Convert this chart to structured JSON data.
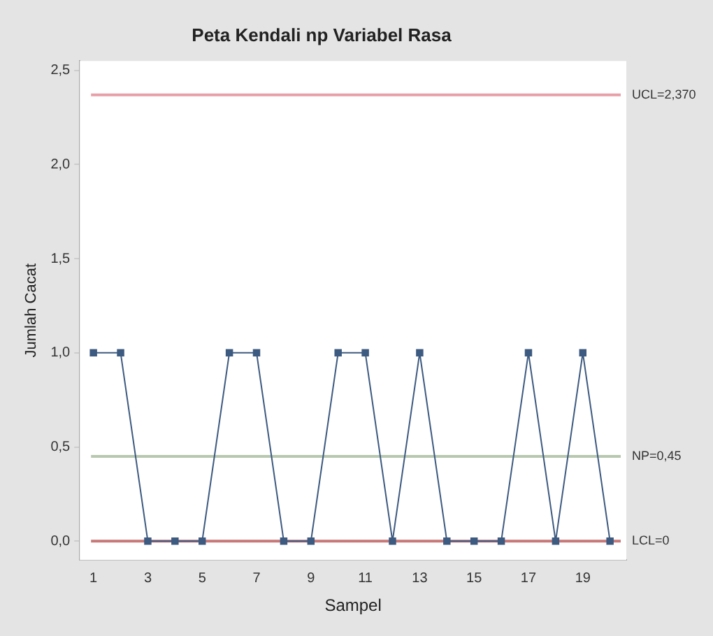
{
  "chart_data": {
    "type": "line",
    "title": "Peta Kendali np Variabel Rasa",
    "xlabel": "Sampel",
    "ylabel": "Jumlah Cacat",
    "x": [
      1,
      2,
      3,
      4,
      5,
      6,
      7,
      8,
      9,
      10,
      11,
      12,
      13,
      14,
      15,
      16,
      17,
      18,
      19,
      20
    ],
    "series": [
      {
        "color": "#3d5a80",
        "values": [
          1,
          1,
          0,
          0,
          0,
          1,
          1,
          0,
          0,
          1,
          1,
          0,
          1,
          0,
          0,
          0,
          1,
          0,
          1,
          0
        ]
      }
    ],
    "xlim": [
      0.5,
      20.6
    ],
    "xticks": [
      1,
      3,
      5,
      7,
      9,
      11,
      13,
      15,
      17,
      19
    ],
    "ylim": [
      -0.1,
      2.55
    ],
    "yticks": [
      {
        "value": 0,
        "label": "0,0"
      },
      {
        "value": 0.5,
        "label": "0,5"
      },
      {
        "value": 1,
        "label": "1,0"
      },
      {
        "value": 1.5,
        "label": "1,5"
      },
      {
        "value": 2,
        "label": "2,0"
      },
      {
        "value": 2.5,
        "label": "2,5"
      }
    ],
    "ref_lines": [
      {
        "axis": "y",
        "value": 2.37,
        "label": "UCL=2,370",
        "color": "#e8a0a8"
      },
      {
        "axis": "y",
        "value": 0.45,
        "label": "NP=0,45",
        "color": "#b8c8b0"
      },
      {
        "axis": "y",
        "value": 0,
        "label": "LCL=0",
        "color": "#c87878"
      }
    ],
    "grid": false,
    "legend": false,
    "marker": "square",
    "line_style": "solid"
  }
}
